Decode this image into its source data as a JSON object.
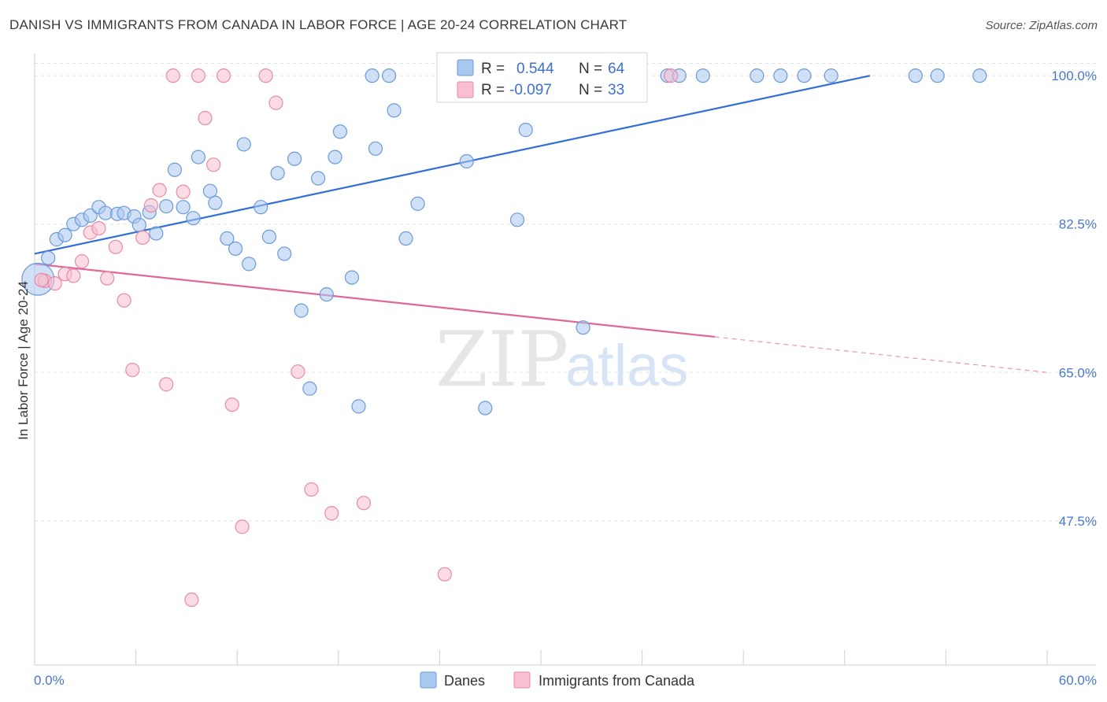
{
  "title": "DANISH VS IMMIGRANTS FROM CANADA IN LABOR FORCE | AGE 20-24 CORRELATION CHART",
  "source": "Source: ZipAtlas.com",
  "watermark": {
    "zip": "ZIP",
    "atlas": "atlas"
  },
  "colors": {
    "danes_fill": "#a9c8f0",
    "danes_stroke": "#6b9ad8",
    "danes_line": "#2f6fd6",
    "canada_fill": "#f7bfd0",
    "canada_stroke": "#e88aa8",
    "canada_line": "#e0679a",
    "grid": "#e2e2e2",
    "tick_text": "#4a78c9"
  },
  "stats": [
    {
      "r_label": "R =",
      "r_value": "0.544",
      "n_label": "N =",
      "n_value": "64",
      "series": "danes"
    },
    {
      "r_label": "R =",
      "r_value": "-0.097",
      "n_label": "N =",
      "n_value": "33",
      "series": "canada"
    }
  ],
  "chart_data": {
    "type": "scatter",
    "ylabel": "In Labor Force | Age 20-24",
    "xlabel": "",
    "xlim": [
      0,
      60
    ],
    "ylim": [
      30.5,
      101.5
    ],
    "x_tick_labels": [
      "0.0%",
      "60.0%"
    ],
    "y_ticks": [
      47.5,
      65.0,
      82.5,
      100.0
    ],
    "y_tick_labels": [
      "47.5%",
      "65.0%",
      "82.5%",
      "100.0%"
    ],
    "grid": true,
    "legend": [
      {
        "name": "Danes",
        "series": "danes"
      },
      {
        "name": "Immigrants from Canada",
        "series": "canada"
      }
    ],
    "series": [
      {
        "name": "Danes",
        "key": "danes",
        "trend": {
          "x0": 0,
          "y0": 79.0,
          "x1": 49.5,
          "y1": 100.0,
          "dashed_to": null
        },
        "points": [
          [
            0.2,
            76.0,
            2.4
          ],
          [
            0.8,
            78.5,
            1
          ],
          [
            1.3,
            80.7,
            1
          ],
          [
            1.8,
            81.2,
            1
          ],
          [
            2.3,
            82.5,
            1
          ],
          [
            2.8,
            83.0,
            1
          ],
          [
            3.3,
            83.5,
            1
          ],
          [
            3.8,
            84.5,
            1
          ],
          [
            4.2,
            83.8,
            1
          ],
          [
            4.9,
            83.7,
            1
          ],
          [
            5.3,
            83.8,
            1
          ],
          [
            5.9,
            83.4,
            1
          ],
          [
            6.2,
            82.4,
            1
          ],
          [
            6.8,
            83.9,
            1
          ],
          [
            7.2,
            81.4,
            1
          ],
          [
            7.8,
            84.6,
            1
          ],
          [
            8.3,
            88.9,
            1
          ],
          [
            8.8,
            84.5,
            1
          ],
          [
            9.4,
            83.2,
            1
          ],
          [
            9.7,
            90.4,
            1
          ],
          [
            10.4,
            86.4,
            1
          ],
          [
            10.7,
            85.0,
            1
          ],
          [
            11.4,
            80.8,
            1
          ],
          [
            11.9,
            79.6,
            1
          ],
          [
            12.4,
            91.9,
            1
          ],
          [
            12.7,
            77.8,
            1
          ],
          [
            13.4,
            84.5,
            1
          ],
          [
            13.9,
            81.0,
            1
          ],
          [
            14.4,
            88.5,
            1
          ],
          [
            14.8,
            79.0,
            1
          ],
          [
            15.4,
            90.2,
            1
          ],
          [
            15.8,
            72.3,
            1
          ],
          [
            16.3,
            63.1,
            1
          ],
          [
            16.8,
            87.9,
            1
          ],
          [
            17.3,
            74.2,
            1
          ],
          [
            17.8,
            90.4,
            1
          ],
          [
            18.1,
            93.4,
            1
          ],
          [
            18.8,
            76.2,
            1
          ],
          [
            19.2,
            61.0,
            1
          ],
          [
            20.0,
            100.0,
            1
          ],
          [
            20.2,
            91.4,
            1
          ],
          [
            21.0,
            100.0,
            1
          ],
          [
            21.3,
            95.9,
            1
          ],
          [
            22.0,
            80.8,
            1
          ],
          [
            22.7,
            84.9,
            1
          ],
          [
            25.0,
            100.0,
            1
          ],
          [
            25.6,
            89.9,
            1
          ],
          [
            26.7,
            60.8,
            1
          ],
          [
            28.0,
            100.0,
            1
          ],
          [
            28.6,
            83.0,
            1
          ],
          [
            29.1,
            93.6,
            1
          ],
          [
            32.5,
            70.3,
            1
          ],
          [
            35.5,
            100.0,
            1
          ],
          [
            37.5,
            100.0,
            1
          ],
          [
            38.2,
            100.0,
            1
          ],
          [
            39.6,
            100.0,
            1
          ],
          [
            42.8,
            100.0,
            1
          ],
          [
            44.2,
            100.0,
            1
          ],
          [
            45.6,
            100.0,
            1
          ],
          [
            47.2,
            100.0,
            1
          ],
          [
            52.2,
            100.0,
            1
          ],
          [
            53.5,
            100.0,
            1
          ],
          [
            56.0,
            100.0,
            1
          ],
          [
            30.5,
            100.0,
            1
          ]
        ]
      },
      {
        "name": "Immigrants from Canada",
        "key": "canada",
        "trend": {
          "x0": 0,
          "y0": 77.8,
          "x1": 40.3,
          "y1": 69.2,
          "dashed_to": [
            60.0,
            65.0
          ]
        },
        "points": [
          [
            0.6,
            75.8,
            1
          ],
          [
            1.2,
            75.5,
            1
          ],
          [
            1.8,
            76.6,
            1
          ],
          [
            2.3,
            76.4,
            1
          ],
          [
            2.8,
            78.1,
            1
          ],
          [
            3.3,
            81.5,
            1
          ],
          [
            3.8,
            82.0,
            1
          ],
          [
            4.3,
            76.1,
            1
          ],
          [
            4.8,
            79.8,
            1
          ],
          [
            5.3,
            73.5,
            1
          ],
          [
            5.8,
            65.3,
            1
          ],
          [
            6.4,
            80.9,
            1
          ],
          [
            6.9,
            84.7,
            1
          ],
          [
            7.4,
            86.5,
            1
          ],
          [
            7.8,
            63.6,
            1
          ],
          [
            8.2,
            100.0,
            1
          ],
          [
            8.8,
            86.3,
            1
          ],
          [
            9.3,
            38.2,
            1
          ],
          [
            9.7,
            100.0,
            1
          ],
          [
            10.1,
            95.0,
            1
          ],
          [
            10.6,
            89.5,
            1
          ],
          [
            11.2,
            100.0,
            1
          ],
          [
            11.7,
            61.2,
            1
          ],
          [
            12.3,
            46.8,
            1
          ],
          [
            13.7,
            100.0,
            1
          ],
          [
            14.3,
            96.8,
            1
          ],
          [
            15.6,
            65.1,
            1
          ],
          [
            16.4,
            51.2,
            1
          ],
          [
            17.6,
            48.4,
            1
          ],
          [
            19.5,
            49.6,
            1
          ],
          [
            24.3,
            41.2,
            1
          ],
          [
            37.7,
            100.0,
            1
          ],
          [
            0.4,
            75.9,
            1
          ]
        ]
      }
    ]
  }
}
